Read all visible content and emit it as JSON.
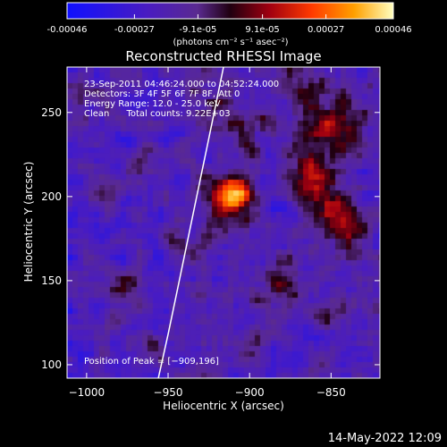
{
  "colorbar": {
    "tick_labels": [
      "-0.00046",
      "-0.00027",
      "-9.1e-05",
      "9.1e-05",
      "0.00027",
      "0.00046"
    ],
    "tick_values": [
      -0.00046,
      -0.00027,
      -9.1e-05,
      9.1e-05,
      0.00027,
      0.00046
    ],
    "range": [
      -0.00046,
      0.00046
    ],
    "unit_label": "(photons cm⁻² s⁻¹ asec⁻²)"
  },
  "footer": {
    "timestamp": "14-May-2022 12:09"
  },
  "chart_data": {
    "type": "heatmap",
    "title": "Reconstructed RHESSI Image",
    "xlabel": "Heliocentric X (arcsec)",
    "ylabel": "Heliocentric Y (arcsec)",
    "xlim": [
      -1012,
      -820
    ],
    "ylim": [
      92,
      277
    ],
    "x_ticks": [
      -1000,
      -950,
      -900,
      -850
    ],
    "x_tick_labels": [
      "−1000",
      "−950",
      "−900",
      "−850"
    ],
    "y_ticks": [
      100,
      150,
      200,
      250
    ],
    "y_tick_labels": [
      "100",
      "150",
      "200",
      "250"
    ],
    "grid": false,
    "annotations": [
      "23-Sep-2011 04:46:24.000 to 04:52:24.000",
      "Detectors: 3F 4F 5F 6F 7F 8F, Att 0",
      "Energy Range: 12.0 - 25.0 keV",
      "Clean      Total counts: 9.22E+03"
    ],
    "peak_label": "Position of Peak = [−909,196]",
    "peak": [
      -909,
      196
    ],
    "limb_curve": {
      "x": [
        -956,
        -950,
        -944,
        -938,
        -932,
        -926,
        -920,
        -916
      ],
      "y": [
        92,
        118,
        146,
        174,
        202,
        230,
        258,
        277
      ]
    },
    "blobs": [
      {
        "x": -909,
        "y": 204,
        "sigma": 7,
        "amp": 0.00046
      },
      {
        "x": -916,
        "y": 196,
        "sigma": 10,
        "amp": 0.00025
      },
      {
        "x": -848,
        "y": 240,
        "sigma": 12,
        "amp": 0.00034
      },
      {
        "x": -862,
        "y": 212,
        "sigma": 10,
        "amp": 0.0003
      },
      {
        "x": -852,
        "y": 190,
        "sigma": 9,
        "amp": 0.00028
      },
      {
        "x": -838,
        "y": 178,
        "sigma": 8,
        "amp": 0.00024
      },
      {
        "x": -870,
        "y": 265,
        "sigma": 9,
        "amp": 0.00022
      },
      {
        "x": -900,
        "y": 240,
        "sigma": 10,
        "amp": 0.00018
      },
      {
        "x": -918,
        "y": 250,
        "sigma": 7,
        "amp": 0.00016
      },
      {
        "x": -970,
        "y": 215,
        "sigma": 6,
        "amp": 0.00015
      },
      {
        "x": -975,
        "y": 145,
        "sigma": 7,
        "amp": 0.00017
      },
      {
        "x": -990,
        "y": 200,
        "sigma": 6,
        "amp": 0.00012
      },
      {
        "x": -1000,
        "y": 260,
        "sigma": 6,
        "amp": 0.00013
      },
      {
        "x": -880,
        "y": 150,
        "sigma": 8,
        "amp": 0.00018
      },
      {
        "x": -895,
        "y": 115,
        "sigma": 7,
        "amp": 0.00014
      },
      {
        "x": -850,
        "y": 130,
        "sigma": 7,
        "amp": 0.00012
      },
      {
        "x": -940,
        "y": 170,
        "sigma": 8,
        "amp": 0.0001
      },
      {
        "x": -930,
        "y": 270,
        "sigma": 6,
        "amp": 0.00014
      },
      {
        "x": -960,
        "y": 110,
        "sigma": 6,
        "amp": 0.00011
      },
      {
        "x": -1000,
        "y": 165,
        "sigma": 5,
        "amp": 0.0001
      }
    ],
    "background_level": -0.0002,
    "noise_amplitude": 0.00012
  }
}
